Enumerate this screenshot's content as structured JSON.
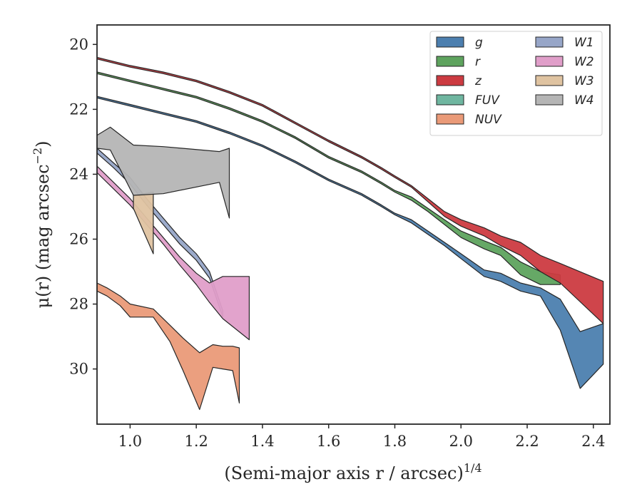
{
  "chart_data": {
    "type": "area",
    "xlabel": "(Semi-major axis r / arcsec)",
    "xlabel_var": "r",
    "xlabel_exp": "1/4",
    "ylabel": "μ(r) (mag arcsec",
    "ylabel_var": "r",
    "ylabel_exp": "−2",
    "xlim": [
      0.9,
      2.45
    ],
    "ylim": [
      31.7,
      19.4
    ],
    "y_inverted": true,
    "xticks": [
      "1.0",
      "1.2",
      "1.4",
      "1.6",
      "1.8",
      "2.0",
      "2.2",
      "2.4"
    ],
    "xtick_values": [
      1.0,
      1.2,
      1.4,
      1.6,
      1.8,
      2.0,
      2.2,
      2.4
    ],
    "yticks": [
      "20",
      "22",
      "24",
      "26",
      "28",
      "30"
    ],
    "ytick_values": [
      20,
      22,
      24,
      26,
      28,
      30
    ],
    "legend_position": "top-right",
    "legend_columns": 2,
    "series": [
      {
        "name": "g",
        "color": "#4c7faf",
        "x": [
          0.9,
          1.0,
          1.1,
          1.2,
          1.3,
          1.4,
          1.5,
          1.6,
          1.7,
          1.76,
          1.8,
          1.85,
          1.9,
          1.95,
          2.0,
          2.07,
          2.12,
          2.18,
          2.24,
          2.3,
          2.36,
          2.43
        ],
        "y_upper": [
          21.6,
          21.85,
          22.1,
          22.35,
          22.7,
          23.1,
          23.6,
          24.15,
          24.6,
          24.95,
          25.2,
          25.4,
          25.75,
          26.1,
          26.45,
          26.95,
          27.05,
          27.35,
          27.5,
          27.85,
          28.85,
          28.6
        ],
        "y_lower": [
          21.65,
          21.9,
          22.15,
          22.4,
          22.75,
          23.15,
          23.65,
          24.2,
          24.65,
          25.0,
          25.25,
          25.5,
          25.85,
          26.2,
          26.6,
          27.15,
          27.3,
          27.6,
          27.75,
          28.8,
          30.6,
          29.85
        ]
      },
      {
        "name": "r",
        "color": "#5ea35e",
        "x": [
          0.9,
          1.0,
          1.1,
          1.2,
          1.3,
          1.4,
          1.5,
          1.6,
          1.7,
          1.76,
          1.8,
          1.85,
          1.9,
          1.95,
          2.0,
          2.07,
          2.12,
          2.18,
          2.24,
          2.3
        ],
        "y_upper": [
          20.85,
          21.1,
          21.35,
          21.6,
          21.95,
          22.35,
          22.85,
          23.45,
          23.9,
          24.25,
          24.5,
          24.7,
          25.05,
          25.4,
          25.75,
          26.05,
          26.25,
          26.7,
          27.0,
          27.1
        ],
        "y_lower": [
          20.9,
          21.15,
          21.4,
          21.65,
          22.0,
          22.4,
          22.9,
          23.5,
          23.95,
          24.3,
          24.55,
          24.8,
          25.15,
          25.55,
          25.95,
          26.3,
          26.5,
          27.1,
          27.4,
          27.4
        ]
      },
      {
        "name": "z",
        "color": "#cc3b41",
        "x": [
          0.9,
          1.0,
          1.1,
          1.2,
          1.3,
          1.4,
          1.5,
          1.6,
          1.7,
          1.76,
          1.8,
          1.85,
          1.9,
          1.95,
          2.0,
          2.07,
          2.12,
          2.18,
          2.24,
          2.3,
          2.43
        ],
        "y_upper": [
          20.4,
          20.65,
          20.85,
          21.1,
          21.45,
          21.85,
          22.4,
          22.95,
          23.45,
          23.8,
          24.05,
          24.35,
          24.75,
          25.15,
          25.4,
          25.65,
          25.9,
          26.1,
          26.5,
          26.75,
          27.3
        ],
        "y_lower": [
          20.45,
          20.7,
          20.9,
          21.15,
          21.5,
          21.9,
          22.45,
          23.0,
          23.5,
          23.85,
          24.1,
          24.4,
          24.85,
          25.3,
          25.6,
          25.9,
          26.2,
          26.5,
          27.0,
          27.35,
          28.6
        ]
      },
      {
        "name": "FUV",
        "color": "#6fb6a0",
        "x": [],
        "y_upper": [],
        "y_lower": []
      },
      {
        "name": "NUV",
        "color": "#ea9a78",
        "x": [
          0.9,
          0.93,
          0.97,
          1.0,
          1.07,
          1.12,
          1.16,
          1.21,
          1.25,
          1.28,
          1.31,
          1.33
        ],
        "y_upper": [
          27.35,
          27.5,
          27.75,
          28.0,
          28.15,
          28.65,
          29.05,
          29.5,
          29.25,
          29.3,
          29.3,
          29.35
        ],
        "y_lower": [
          27.6,
          27.75,
          28.05,
          28.4,
          28.4,
          29.15,
          30.05,
          31.25,
          29.95,
          30.0,
          30.05,
          31.05
        ]
      },
      {
        "name": "W1",
        "color": "#97a6c8",
        "x": [
          0.9,
          0.95,
          1.0,
          1.05,
          1.1,
          1.15,
          1.2,
          1.24,
          1.28
        ],
        "y_upper": [
          23.2,
          23.65,
          24.1,
          24.75,
          25.35,
          25.95,
          26.45,
          27.0,
          28.2
        ],
        "y_lower": [
          23.35,
          23.8,
          24.3,
          24.95,
          25.55,
          26.15,
          26.65,
          27.2,
          28.4
        ]
      },
      {
        "name": "W2",
        "color": "#e09ec9",
        "x": [
          0.9,
          0.95,
          1.0,
          1.05,
          1.1,
          1.15,
          1.2,
          1.24,
          1.28,
          1.36
        ],
        "y_upper": [
          23.75,
          24.25,
          24.75,
          25.35,
          25.95,
          26.55,
          27.05,
          27.35,
          27.15,
          27.15
        ],
        "y_lower": [
          23.95,
          24.45,
          24.95,
          25.55,
          26.15,
          26.8,
          27.4,
          27.95,
          28.45,
          29.1
        ]
      },
      {
        "name": "W3",
        "color": "#dfc3a1",
        "x": [
          1.01,
          1.07
        ],
        "y_upper": [
          24.65,
          24.55
        ],
        "y_lower": [
          25.05,
          26.45
        ]
      },
      {
        "name": "W4",
        "color": "#b5b5b5",
        "x": [
          0.9,
          0.94,
          1.01,
          1.1,
          1.27,
          1.3
        ],
        "y_upper": [
          22.8,
          22.55,
          23.1,
          23.15,
          23.3,
          23.2
        ],
        "y_lower": [
          23.2,
          23.25,
          24.65,
          24.6,
          24.25,
          25.35
        ]
      }
    ]
  }
}
